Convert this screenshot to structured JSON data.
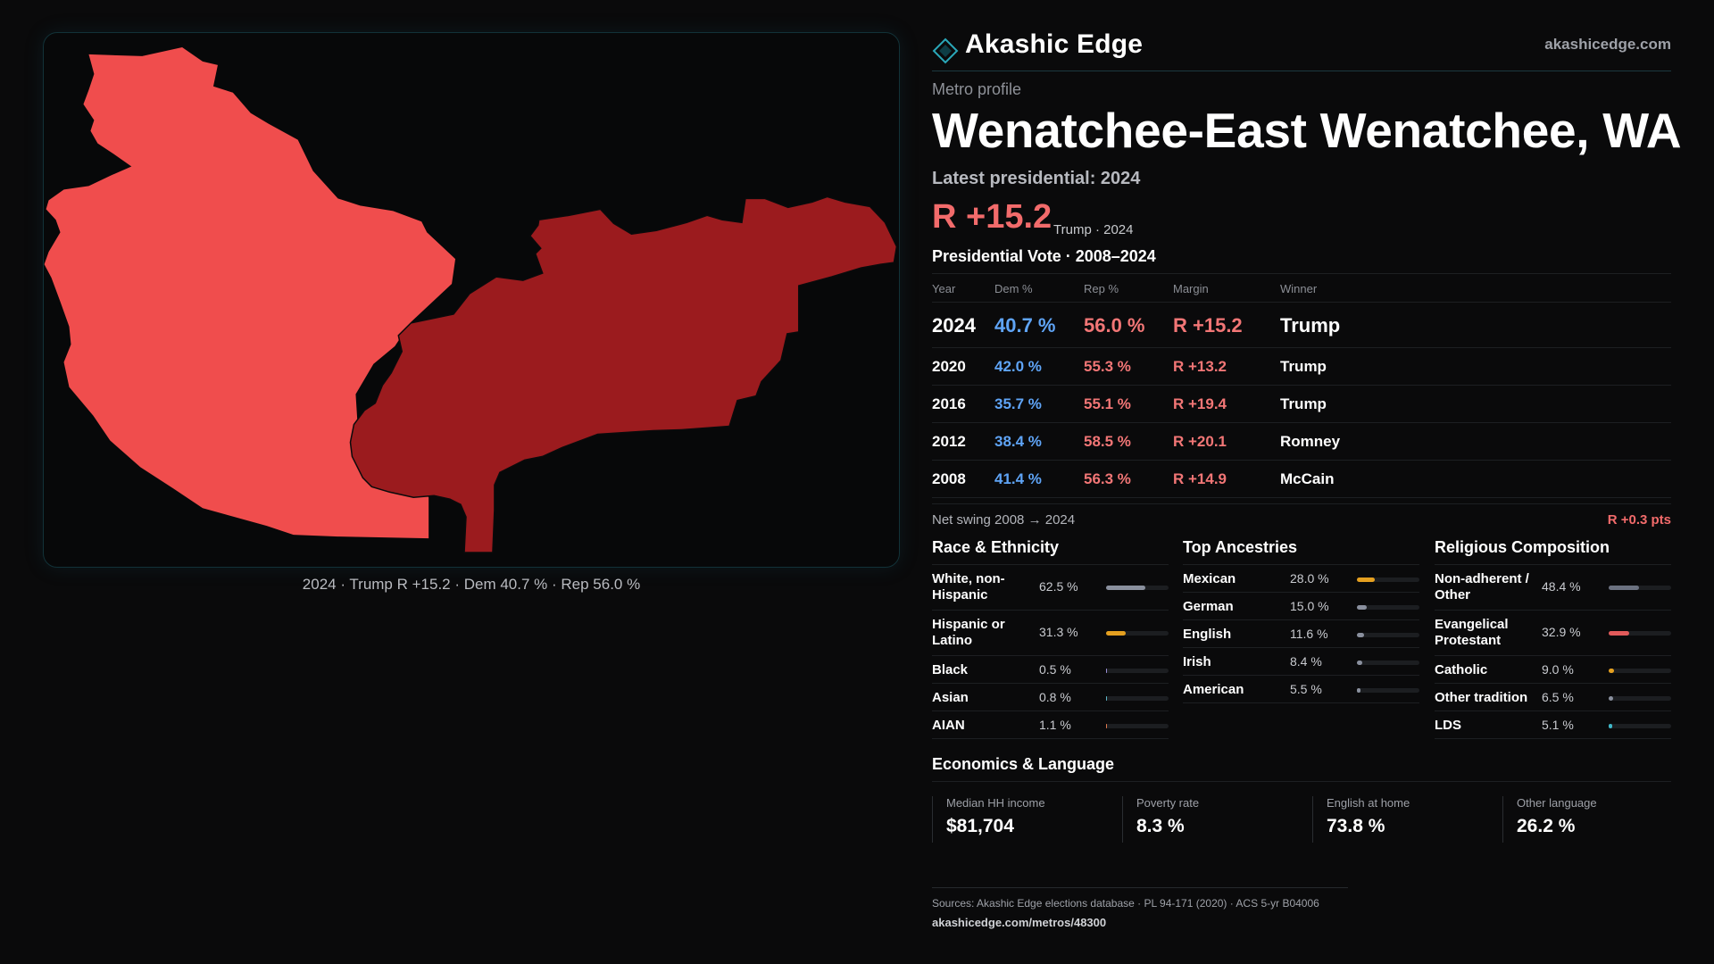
{
  "brand": {
    "name": "Akashic Edge",
    "url": "akashicedge.com"
  },
  "metro": {
    "eyebrow": "Metro profile",
    "title": "Wenatchee-East Wenatchee, WA",
    "latest_label": "Latest presidential: 2024",
    "headline_margin": "R +15.2",
    "headline_note": "Trump · 2024"
  },
  "map": {
    "caption": "2024 · Trump R +15.2 · Dem 40.7 % · Rep 56.0 %",
    "colors": {
      "west_county": "#f04d4d",
      "east_county": "#9b1b1e",
      "border": "#103035"
    }
  },
  "vote": {
    "heading": "Presidential Vote · 2008–2024",
    "columns": [
      "Year",
      "Dem %",
      "Rep %",
      "Margin",
      "Winner"
    ],
    "rows": [
      {
        "year": "2024",
        "dem": "40.7 %",
        "rep": "56.0 %",
        "margin": "R +15.2",
        "winner": "Trump"
      },
      {
        "year": "2020",
        "dem": "42.0 %",
        "rep": "55.3 %",
        "margin": "R +13.2",
        "winner": "Trump"
      },
      {
        "year": "2016",
        "dem": "35.7 %",
        "rep": "55.1 %",
        "margin": "R +19.4",
        "winner": "Trump"
      },
      {
        "year": "2012",
        "dem": "38.4 %",
        "rep": "58.5 %",
        "margin": "R +20.1",
        "winner": "Romney"
      },
      {
        "year": "2008",
        "dem": "41.4 %",
        "rep": "56.3 %",
        "margin": "R +14.9",
        "winner": "McCain"
      }
    ],
    "swing_label": "Net swing 2008 → 2024",
    "swing_value": "R +0.3 pts",
    "colors": {
      "dem": "#5fa4f6",
      "rep": "#f27676"
    }
  },
  "race": {
    "heading": "Race & Ethnicity",
    "rows": [
      {
        "label": "White, non-Hispanic",
        "value": "62.5 %",
        "pct": 62.5,
        "color": "#8a909e"
      },
      {
        "label": "Hispanic or Latino",
        "value": "31.3 %",
        "pct": 31.3,
        "color": "#e5a020"
      },
      {
        "label": "Black",
        "value": "0.5 %",
        "pct": 0.5,
        "color": "#9a8fd6"
      },
      {
        "label": "Asian",
        "value": "0.8 %",
        "pct": 0.8,
        "color": "#5fb8c9"
      },
      {
        "label": "AIAN",
        "value": "1.1 %",
        "pct": 1.1,
        "color": "#e07a4f"
      }
    ]
  },
  "ancestry": {
    "heading": "Top Ancestries",
    "rows": [
      {
        "label": "Mexican",
        "value": "28.0 %",
        "pct": 28.0,
        "color": "#e5a020"
      },
      {
        "label": "German",
        "value": "15.0 %",
        "pct": 15.0,
        "color": "#8a909e"
      },
      {
        "label": "English",
        "value": "11.6 %",
        "pct": 11.6,
        "color": "#8a909e"
      },
      {
        "label": "Irish",
        "value": "8.4 %",
        "pct": 8.4,
        "color": "#8a909e"
      },
      {
        "label": "American",
        "value": "5.5 %",
        "pct": 5.5,
        "color": "#8a909e"
      }
    ]
  },
  "religion": {
    "heading": "Religious Composition",
    "rows": [
      {
        "label": "Non-adherent / Other",
        "value": "48.4 %",
        "pct": 48.4,
        "color": "#6b7180"
      },
      {
        "label": "Evangelical Protestant",
        "value": "32.9 %",
        "pct": 32.9,
        "color": "#e25a5a"
      },
      {
        "label": "Catholic",
        "value": "9.0 %",
        "pct": 9.0,
        "color": "#e5a020"
      },
      {
        "label": "Other tradition",
        "value": "6.5 %",
        "pct": 6.5,
        "color": "#8a909e"
      },
      {
        "label": "LDS",
        "value": "5.1 %",
        "pct": 5.1,
        "color": "#3fb6c7"
      }
    ]
  },
  "economics": {
    "heading": "Economics & Language",
    "cards": [
      {
        "label": "Median HH income",
        "value": "$81,704"
      },
      {
        "label": "Poverty rate",
        "value": "8.3 %"
      },
      {
        "label": "English at home",
        "value": "73.8 %"
      },
      {
        "label": "Other language",
        "value": "26.2 %"
      }
    ]
  },
  "footer": {
    "sources": "Sources: Akashic Edge elections database · PL 94-171 (2020) · ACS 5-yr B04006",
    "url": "akashicedge.com/metros/48300"
  }
}
